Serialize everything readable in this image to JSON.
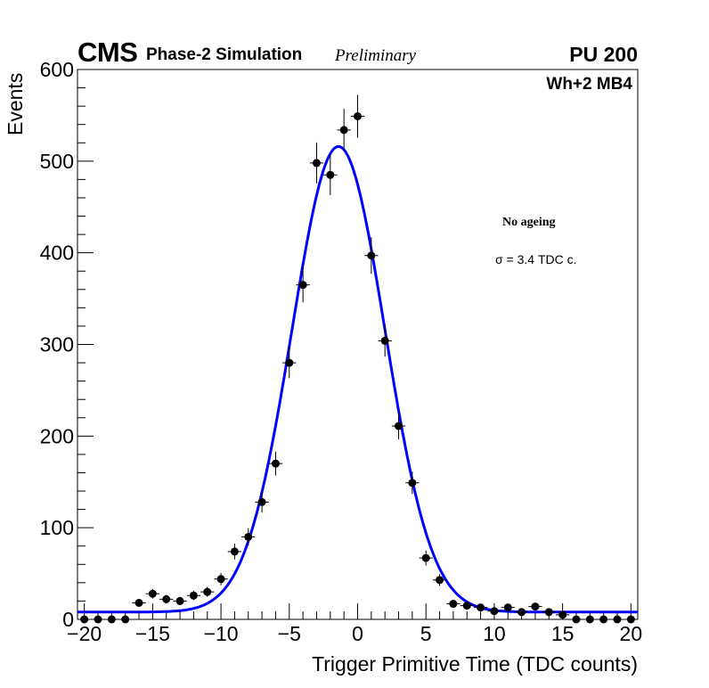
{
  "header": {
    "experiment": "CMS",
    "subtitle": "Phase-2 Simulation",
    "status": "Preliminary",
    "pileup": "PU 200",
    "chamber": "Wh+2 MB4"
  },
  "annotations": {
    "scenario": "No ageing",
    "resolution": "σ = 3.4 TDC c."
  },
  "chart_data": {
    "type": "scatter",
    "title": "",
    "xlabel": "Trigger Primitive Time (TDC counts)",
    "ylabel": "Events",
    "xlim": [
      -20.5,
      20.5
    ],
    "ylim": [
      0,
      600
    ],
    "x_ticks": [
      -20,
      -15,
      -10,
      -5,
      0,
      5,
      10,
      15,
      20
    ],
    "x_tick_labels": [
      "−20",
      "−15",
      "−10",
      "−5",
      "0",
      "5",
      "10",
      "15",
      "20"
    ],
    "y_ticks": [
      0,
      100,
      200,
      300,
      400,
      500,
      600
    ],
    "y_tick_labels": [
      "0",
      "100",
      "200",
      "300",
      "400",
      "500",
      "600"
    ],
    "grid": false,
    "series": [
      {
        "name": "data",
        "x": [
          -20,
          -19,
          -18,
          -17,
          -16,
          -15,
          -14,
          -13,
          -12,
          -11,
          -10,
          -9,
          -8,
          -7,
          -6,
          -5,
          -4,
          -3,
          -2,
          -1,
          0,
          1,
          2,
          3,
          4,
          5,
          6,
          7,
          8,
          9,
          10,
          11,
          12,
          13,
          14,
          15,
          16,
          17,
          18,
          19,
          20
        ],
        "y": [
          0,
          0,
          0,
          0,
          18,
          28,
          22,
          20,
          26,
          30,
          44,
          74,
          90,
          128,
          170,
          280,
          365,
          498,
          485,
          534,
          549,
          397,
          304,
          211,
          149,
          67,
          43,
          17,
          15,
          13,
          9,
          13,
          8,
          14,
          8,
          5,
          0,
          0,
          0,
          0,
          0
        ],
        "x_error": 0.5,
        "color": "#000000"
      },
      {
        "name": "Gaussian fit",
        "type": "line",
        "mean": -1.4,
        "sigma": 3.4,
        "amplitude": 508,
        "baseline": 8,
        "color": "#0000ff"
      }
    ]
  }
}
